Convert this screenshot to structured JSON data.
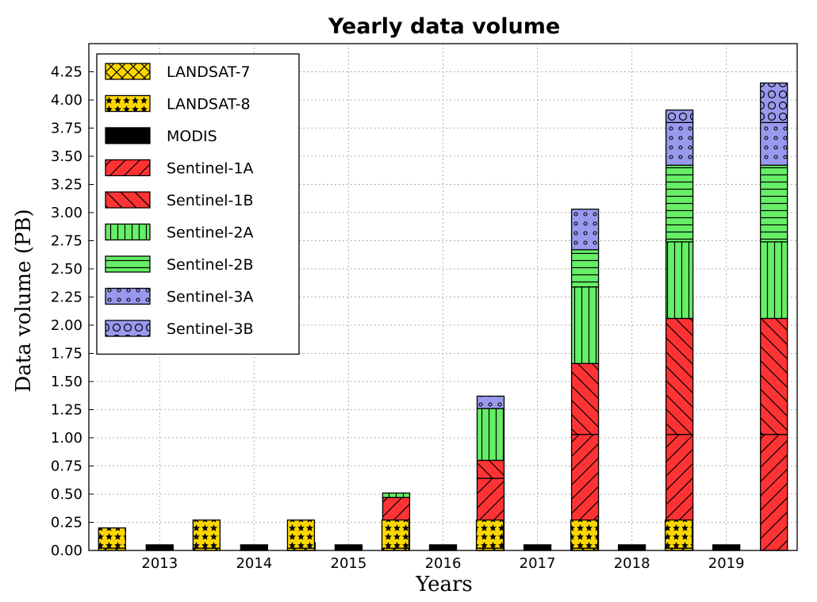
{
  "chart_data": {
    "type": "bar",
    "stacked": true,
    "title": "Yearly data volume",
    "xlabel": "Years",
    "ylabel": "Data volume (PB)",
    "ylim": [
      0,
      4.5
    ],
    "yticks": [
      "0.00",
      "0.25",
      "0.50",
      "0.75",
      "1.00",
      "1.25",
      "1.50",
      "1.75",
      "2.00",
      "2.25",
      "2.50",
      "2.75",
      "3.00",
      "3.25",
      "3.50",
      "3.75",
      "4.00",
      "4.25"
    ],
    "grid": true,
    "legend_position": "top-left",
    "categories": [
      "2013",
      "2014",
      "2015",
      "2016",
      "2017",
      "2018",
      "2019"
    ],
    "groups": [
      {
        "name": "LANDSAT",
        "series": [
          "LANDSAT-7",
          "LANDSAT-8"
        ]
      },
      {
        "name": "MODIS",
        "series": [
          "MODIS"
        ]
      },
      {
        "name": "Sentinel",
        "series": [
          "Sentinel-1A",
          "Sentinel-1B",
          "Sentinel-2A",
          "Sentinel-2B",
          "Sentinel-3A",
          "Sentinel-3B"
        ]
      }
    ],
    "series": [
      {
        "name": "LANDSAT-7",
        "color": "#ffd700",
        "values": [
          0.02,
          0.02,
          0.02,
          0.02,
          0.02,
          0.02,
          0.02
        ]
      },
      {
        "name": "LANDSAT-8",
        "color": "#ffd700",
        "values": [
          0.18,
          0.25,
          0.25,
          0.25,
          0.25,
          0.25,
          0.25
        ]
      },
      {
        "name": "MODIS",
        "color": "#000000",
        "values": [
          0.05,
          0.05,
          0.05,
          0.05,
          0.05,
          0.05,
          0.05
        ]
      },
      {
        "name": "Sentinel-1A",
        "color": "#ff3333",
        "values": [
          0.0,
          0.07,
          0.47,
          0.64,
          1.03,
          1.03,
          1.03
        ]
      },
      {
        "name": "Sentinel-1B",
        "color": "#ff3333",
        "values": [
          0.0,
          0.0,
          0.0,
          0.16,
          0.63,
          1.03,
          1.03
        ]
      },
      {
        "name": "Sentinel-2A",
        "color": "#66ee66",
        "values": [
          0.0,
          0.0,
          0.04,
          0.46,
          0.68,
          0.68,
          0.68
        ]
      },
      {
        "name": "Sentinel-2B",
        "color": "#66ee66",
        "values": [
          0.0,
          0.0,
          0.0,
          0.0,
          0.33,
          0.68,
          0.68
        ]
      },
      {
        "name": "Sentinel-3A",
        "color": "#9999ee",
        "values": [
          0.0,
          0.0,
          0.0,
          0.11,
          0.36,
          0.38,
          0.38
        ]
      },
      {
        "name": "Sentinel-3B",
        "color": "#9999ee",
        "values": [
          0.0,
          0.0,
          0.0,
          0.0,
          0.0,
          0.11,
          0.35
        ]
      }
    ],
    "legend": [
      {
        "label": "LANDSAT-7",
        "color": "#ffd700",
        "pattern": "xcross"
      },
      {
        "label": "LANDSAT-8",
        "color": "#ffd700",
        "pattern": "stars"
      },
      {
        "label": "MODIS",
        "color": "#000000",
        "pattern": "solid"
      },
      {
        "label": "Sentinel-1A",
        "color": "#ff3333",
        "pattern": "fslash"
      },
      {
        "label": "Sentinel-1B",
        "color": "#ff3333",
        "pattern": "bslash"
      },
      {
        "label": "Sentinel-2A",
        "color": "#66ee66",
        "pattern": "vlines"
      },
      {
        "label": "Sentinel-2B",
        "color": "#66ee66",
        "pattern": "hlines"
      },
      {
        "label": "Sentinel-3A",
        "color": "#9999ee",
        "pattern": "smallcircles"
      },
      {
        "label": "Sentinel-3B",
        "color": "#9999ee",
        "pattern": "circles"
      }
    ]
  }
}
